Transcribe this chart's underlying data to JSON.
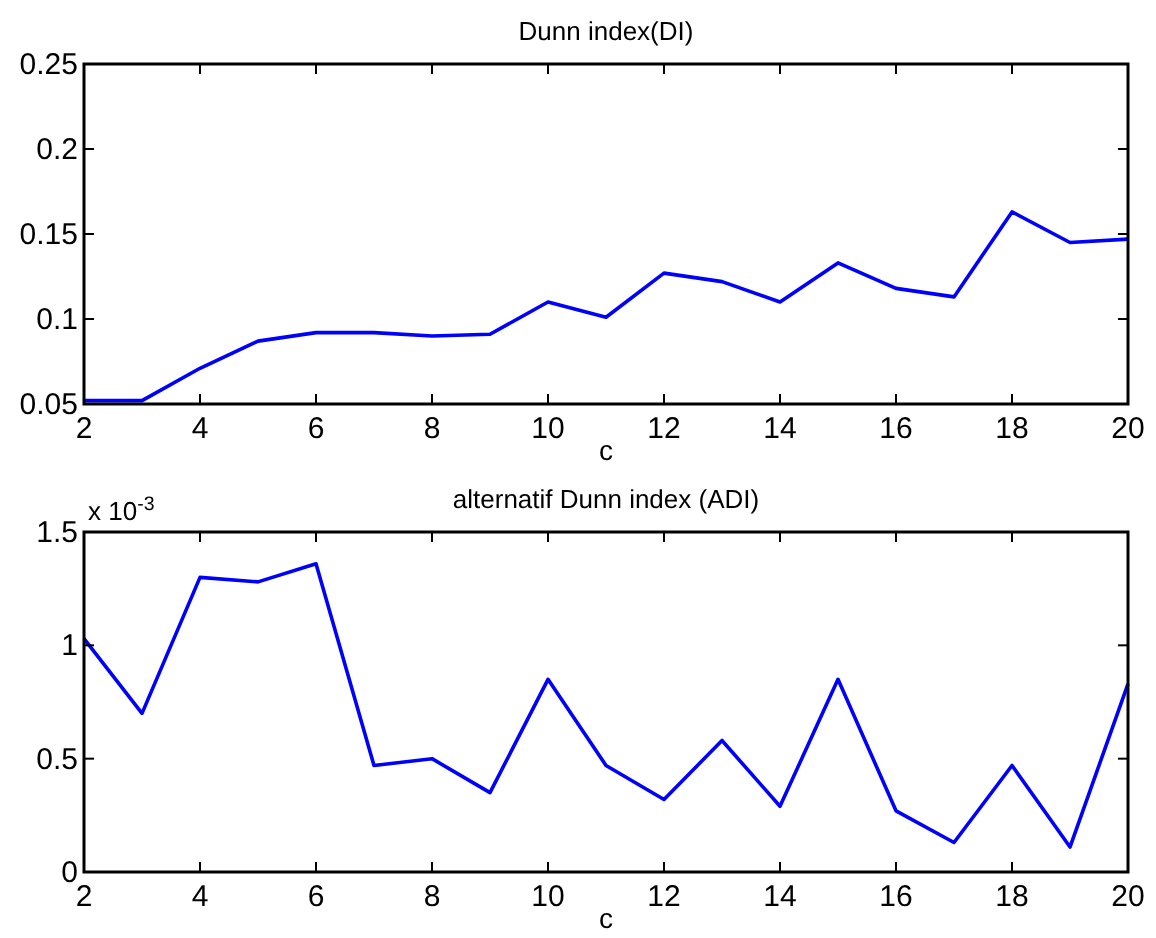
{
  "chart_data": [
    {
      "type": "line",
      "title": "Dunn index(DI)",
      "xlabel": "c",
      "x": [
        2,
        3,
        4,
        5,
        6,
        7,
        8,
        9,
        10,
        11,
        12,
        13,
        14,
        15,
        16,
        17,
        18,
        19,
        20
      ],
      "series": [
        {
          "color": "#0000ff",
          "values": [
            0.052,
            0.052,
            0.071,
            0.087,
            0.092,
            0.092,
            0.09,
            0.091,
            0.11,
            0.101,
            0.127,
            0.122,
            0.11,
            0.133,
            0.118,
            0.113,
            0.163,
            0.145,
            0.147
          ]
        }
      ],
      "xlim": [
        2,
        20
      ],
      "xticks": [
        2,
        4,
        6,
        8,
        10,
        12,
        14,
        16,
        18,
        20
      ],
      "ylim": [
        0.05,
        0.25
      ],
      "yticks": [
        0.05,
        0.1,
        0.15,
        0.2,
        0.25
      ]
    },
    {
      "type": "line",
      "title": "alternatif  Dunn index (ADI)",
      "xlabel": "c",
      "annotations": [
        "x 10$^{-3}$"
      ],
      "x": [
        2,
        3,
        4,
        5,
        6,
        7,
        8,
        9,
        10,
        11,
        12,
        13,
        14,
        15,
        16,
        17,
        18,
        19,
        20
      ],
      "series": [
        {
          "color": "#0000ff",
          "values": [
            1.03,
            0.7,
            1.3,
            1.28,
            1.36,
            0.47,
            0.5,
            0.35,
            0.85,
            0.47,
            0.32,
            0.58,
            0.29,
            0.85,
            0.27,
            0.13,
            0.47,
            0.11,
            0.83
          ]
        }
      ],
      "xlim": [
        2,
        20
      ],
      "xticks": [
        2,
        4,
        6,
        8,
        10,
        12,
        14,
        16,
        18,
        20
      ],
      "ylim": [
        0,
        1.5
      ],
      "yticks": [
        0,
        0.5,
        1,
        1.5
      ]
    }
  ]
}
